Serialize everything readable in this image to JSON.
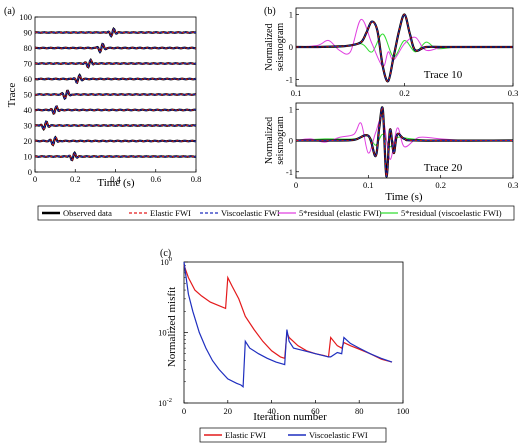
{
  "panels": {
    "a": "(a)",
    "b": "(b)",
    "c": "(c)"
  },
  "legend_top": [
    {
      "label": "Observed data",
      "color": "#000000",
      "dash": "solid",
      "width": 2.6
    },
    {
      "label": "Elastic FWI",
      "color": "#e41a1c",
      "dash": "dashed",
      "width": 1.2
    },
    {
      "label": "Viscoelastic FWI",
      "color": "#1f2fbf",
      "dash": "dashed",
      "width": 1.2
    },
    {
      "label": "5*residual (elastic FWI)",
      "color": "#e040e0",
      "dash": "solid",
      "width": 1.2
    },
    {
      "label": "5*residual (viscoelastic FWI)",
      "color": "#33dd33",
      "dash": "solid",
      "width": 1.2
    }
  ],
  "legend_bottom": [
    {
      "label": "Elastic FWI",
      "color": "#e41a1c"
    },
    {
      "label": "Viscoelastic FWI",
      "color": "#1f2fbf"
    }
  ],
  "chart_data": [
    {
      "id": "a",
      "type": "line",
      "xlabel": "Time (s)",
      "ylabel": "Trace",
      "xlim": [
        0,
        0.8
      ],
      "ylim": [
        0,
        100
      ],
      "xticks": [
        0,
        0.2,
        0.4,
        0.6,
        0.8
      ],
      "yticks": [
        0,
        10,
        20,
        30,
        40,
        50,
        60,
        70,
        80,
        90,
        100
      ],
      "traces": [
        {
          "trace": 90,
          "arrival": 0.385
        },
        {
          "trace": 80,
          "arrival": 0.33
        },
        {
          "trace": 70,
          "arrival": 0.27
        },
        {
          "trace": 60,
          "arrival": 0.215
        },
        {
          "trace": 50,
          "arrival": 0.155
        },
        {
          "trace": 40,
          "arrival": 0.1
        },
        {
          "trace": 30,
          "arrival": 0.05
        },
        {
          "trace": 20,
          "arrival": 0.095
        },
        {
          "trace": 10,
          "arrival": 0.19
        }
      ]
    },
    {
      "id": "b1",
      "type": "line",
      "title": "Trace 10",
      "ylabel": "Normalized\nseismogram",
      "xlim": [
        0.1,
        0.3
      ],
      "ylim": [
        -1.2,
        1.2
      ],
      "xticks": [
        0.1,
        0.2,
        0.3
      ],
      "yticks": [
        -1,
        0,
        1
      ],
      "series": [
        {
          "name": "Observed data",
          "x": [
            0.1,
            0.12,
            0.14,
            0.15,
            0.16,
            0.165,
            0.17,
            0.175,
            0.18,
            0.185,
            0.19,
            0.195,
            0.2,
            0.205,
            0.21,
            0.22,
            0.24,
            0.3
          ],
          "y": [
            0,
            0,
            0.02,
            0.05,
            0.15,
            0.45,
            0.78,
            0.5,
            -0.6,
            -1.05,
            -0.3,
            0.5,
            1.0,
            0.4,
            -0.1,
            0,
            0,
            0
          ]
        },
        {
          "name": "5*residual (elastic FWI)",
          "x": [
            0.1,
            0.12,
            0.13,
            0.14,
            0.15,
            0.16,
            0.17,
            0.18,
            0.185,
            0.19,
            0.2,
            0.21,
            0.22,
            0.24,
            0.3
          ],
          "y": [
            0,
            0.05,
            0.2,
            -0.1,
            -0.15,
            0.85,
            0.1,
            -0.6,
            -0.15,
            -0.4,
            0.1,
            0.3,
            -0.1,
            0,
            0
          ]
        },
        {
          "name": "5*residual (viscoelastic FWI)",
          "x": [
            0.1,
            0.14,
            0.16,
            0.17,
            0.18,
            0.19,
            0.2,
            0.21,
            0.22,
            0.23,
            0.25,
            0.3
          ],
          "y": [
            0,
            0,
            0.1,
            -0.15,
            0.4,
            -0.3,
            0.2,
            -0.15,
            0.15,
            -0.05,
            0,
            0
          ]
        }
      ]
    },
    {
      "id": "b2",
      "type": "line",
      "title": "Trace 20",
      "xlabel": "Time (s)",
      "ylabel": "Normalized\nseismogram",
      "xlim": [
        0.0,
        0.3
      ],
      "ylim": [
        -1.2,
        1.2
      ],
      "xticks": [
        0,
        0.1,
        0.2,
        0.3
      ],
      "yticks": [
        -1,
        0,
        1
      ],
      "series": [
        {
          "name": "Observed data",
          "x": [
            0,
            0.05,
            0.08,
            0.1,
            0.11,
            0.115,
            0.12,
            0.125,
            0.13,
            0.135,
            0.14,
            0.15,
            0.17,
            0.3
          ],
          "y": [
            0,
            0,
            0.02,
            0.15,
            -0.5,
            0.4,
            1.0,
            -1.15,
            0.35,
            -0.4,
            0.2,
            0.05,
            0,
            0
          ]
        },
        {
          "name": "5*residual (elastic FWI)",
          "x": [
            0,
            0.02,
            0.04,
            0.06,
            0.08,
            0.09,
            0.1,
            0.11,
            0.12,
            0.13,
            0.14,
            0.15,
            0.17,
            0.2,
            0.24,
            0.3
          ],
          "y": [
            0,
            0.05,
            -0.05,
            0.1,
            0.2,
            0.55,
            -0.4,
            0.25,
            0.75,
            -0.6,
            0.4,
            -0.2,
            0.1,
            0.05,
            0,
            0
          ]
        },
        {
          "name": "5*residual (viscoelastic FWI)",
          "x": [
            0,
            0.04,
            0.08,
            0.1,
            0.11,
            0.12,
            0.13,
            0.14,
            0.16,
            0.2,
            0.3
          ],
          "y": [
            0,
            0.05,
            0.05,
            0.15,
            -0.15,
            0.2,
            -0.2,
            0.1,
            0.05,
            0,
            0
          ]
        }
      ]
    },
    {
      "id": "c",
      "type": "line",
      "xlabel": "Iteration number",
      "ylabel": "Normalized misfit",
      "xlim": [
        0,
        100
      ],
      "ylim": [
        0.01,
        1
      ],
      "yscale": "log",
      "xticks": [
        0,
        20,
        40,
        60,
        80,
        100
      ],
      "yticks": [
        0.01,
        0.1,
        1
      ],
      "yticklabels": [
        "10^-2",
        "10^-1",
        "10^0"
      ],
      "series": [
        {
          "name": "Elastic FWI",
          "x": [
            0,
            2,
            5,
            8,
            12,
            16,
            19,
            20,
            22,
            25,
            28,
            32,
            36,
            40,
            44,
            46,
            47,
            48,
            52,
            56,
            60,
            64,
            66,
            67,
            70,
            72,
            73,
            76,
            80,
            85,
            90,
            95
          ],
          "y": [
            0.9,
            0.6,
            0.4,
            0.33,
            0.27,
            0.24,
            0.22,
            0.6,
            0.45,
            0.3,
            0.17,
            0.11,
            0.075,
            0.055,
            0.045,
            0.043,
            0.1,
            0.085,
            0.065,
            0.055,
            0.05,
            0.047,
            0.045,
            0.085,
            0.065,
            0.06,
            0.072,
            0.065,
            0.058,
            0.05,
            0.042,
            0.038
          ]
        },
        {
          "name": "Viscoelastic FWI",
          "x": [
            0,
            2,
            4,
            7,
            10,
            13,
            16,
            20,
            24,
            26,
            27,
            28,
            30,
            34,
            38,
            42,
            46,
            47,
            48,
            50,
            55,
            60,
            66,
            67,
            70,
            72,
            73,
            76,
            80,
            85,
            90,
            95
          ],
          "y": [
            1.0,
            0.35,
            0.2,
            0.1,
            0.06,
            0.04,
            0.03,
            0.022,
            0.019,
            0.018,
            0.017,
            0.075,
            0.06,
            0.05,
            0.043,
            0.038,
            0.035,
            0.11,
            0.075,
            0.06,
            0.055,
            0.05,
            0.045,
            0.045,
            0.052,
            0.05,
            0.085,
            0.07,
            0.06,
            0.05,
            0.043,
            0.038
          ]
        }
      ]
    }
  ]
}
